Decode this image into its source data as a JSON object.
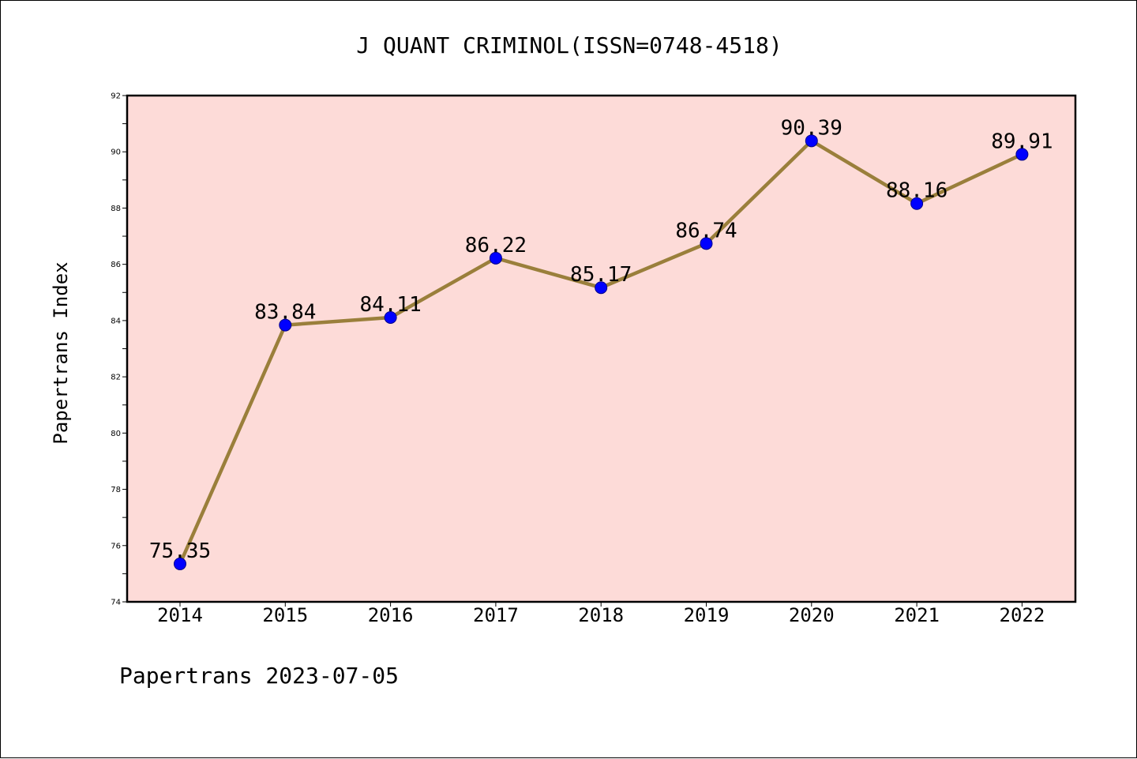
{
  "chart_data": {
    "type": "line",
    "title": "J QUANT CRIMINOL(ISSN=0748-4518)",
    "ylabel": "Papertrans Index",
    "xlabel": "",
    "categories": [
      "2014",
      "2015",
      "2016",
      "2017",
      "2018",
      "2019",
      "2020",
      "2021",
      "2022"
    ],
    "values": [
      75.35,
      83.84,
      84.11,
      86.22,
      85.17,
      86.74,
      90.39,
      88.16,
      89.91
    ],
    "data_labels": [
      "75.35",
      "83.84",
      "84.11",
      "86.22",
      "85.17",
      "86.74",
      "90.39",
      "88.16",
      "89.91"
    ],
    "ylim": [
      74,
      92
    ],
    "yticks": [
      "74",
      "76",
      "78",
      "80",
      "82",
      "84",
      "86",
      "88",
      "90",
      "92"
    ],
    "grid": false,
    "footer": "Papertrans 2023-07-05",
    "colors": {
      "plot_background": "#fddbd8",
      "line": "#9a7f3b",
      "marker": "#0000ff",
      "marker_edge": "#00008b"
    }
  }
}
